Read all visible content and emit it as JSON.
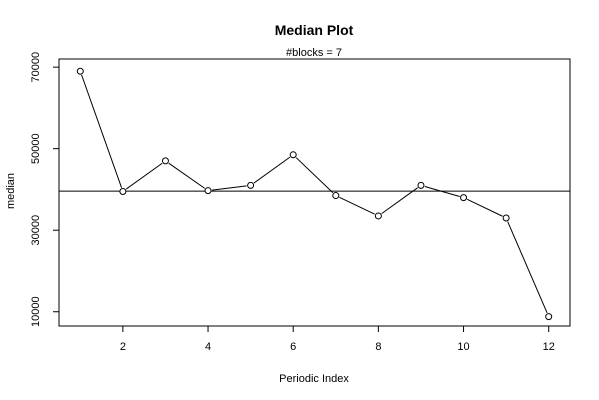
{
  "chart_data": {
    "type": "line",
    "title": "Median Plot",
    "subtitle": "#blocks =  7",
    "xlabel": "Periodic Index",
    "ylabel": "median",
    "x": [
      1,
      2,
      3,
      4,
      5,
      6,
      7,
      8,
      9,
      10,
      11,
      12
    ],
    "series": [
      {
        "values": [
          69000,
          39500,
          47000,
          39700,
          41000,
          48500,
          38500,
          33500,
          41000,
          38000,
          33000,
          8800
        ]
      }
    ],
    "reference_line": 39600,
    "xlim": [
      0.5,
      12.5
    ],
    "ylim": [
      6500,
      72000
    ],
    "xticks": [
      2,
      4,
      6,
      8,
      10,
      12
    ],
    "yticks": [
      10000,
      30000,
      50000,
      70000
    ],
    "grid": false,
    "colors": {
      "line": "#000000",
      "marker_fill": "#ffffff",
      "frame": "#000000"
    }
  }
}
